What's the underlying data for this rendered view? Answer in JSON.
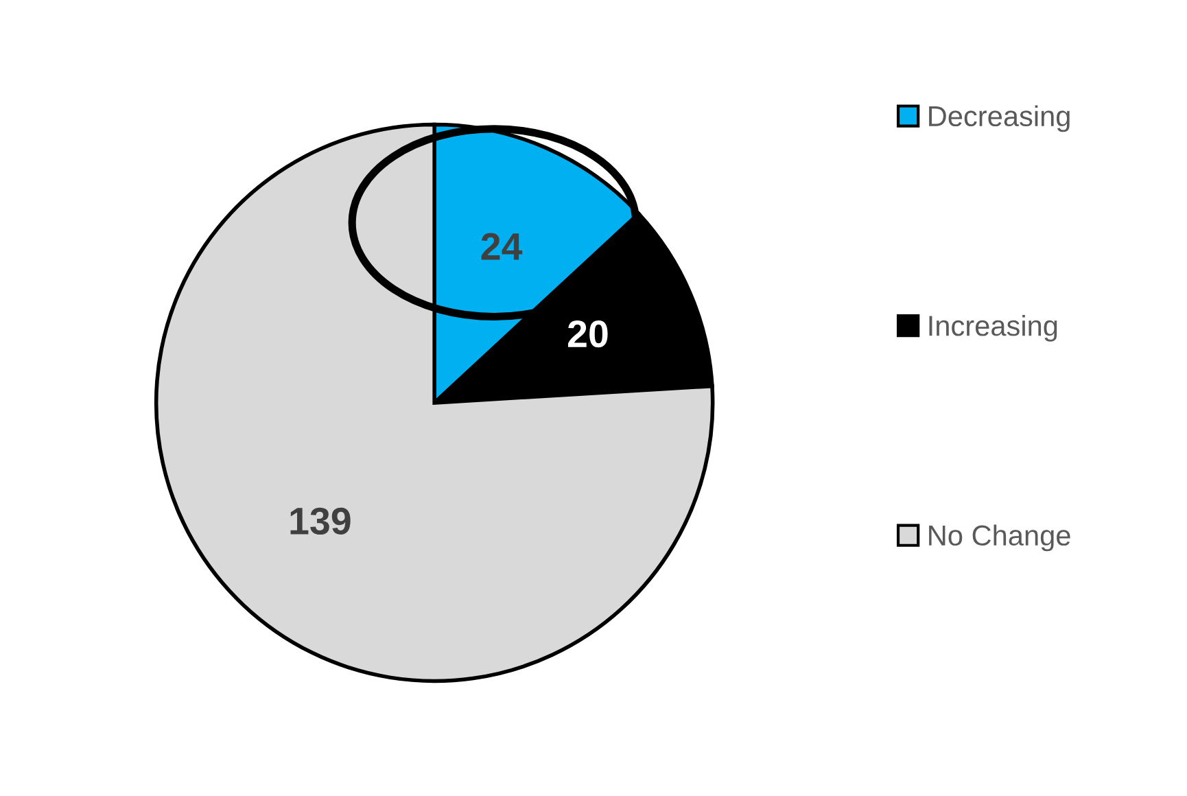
{
  "chart_data": {
    "type": "pie",
    "categories": [
      "Decreasing",
      "Increasing",
      "No Change"
    ],
    "values": [
      24,
      20,
      139
    ],
    "colors": [
      "#00b0f0",
      "#000000",
      "#d9d9d9"
    ],
    "data_labels": true,
    "legend": "right"
  }
}
